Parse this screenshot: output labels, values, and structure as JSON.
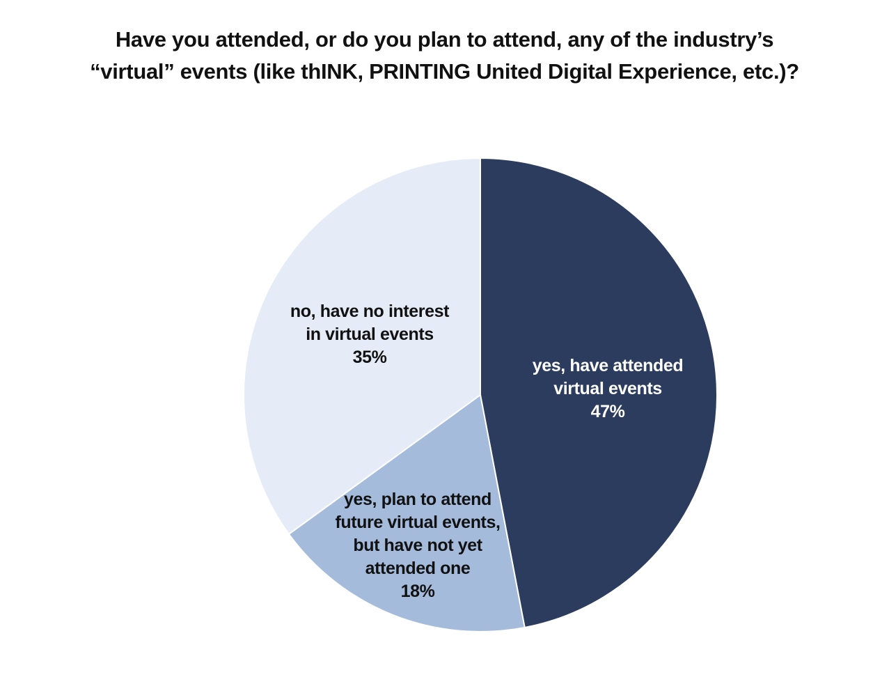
{
  "chart_data": {
    "type": "pie",
    "title": [
      "Have you attended, or do you plan to attend, any of the industry’s",
      "“virtual” events (like thINK, PRINTING United Digital Experience, etc.)?"
    ],
    "start_angle_deg": 0,
    "direction": "clockwise",
    "slices": [
      {
        "name": "yes, have attended virtual events",
        "label_lines": [
          "yes, have attended",
          "virtual events"
        ],
        "value": 47,
        "value_label": "47%",
        "color": "#2c3c5e",
        "text_color": "#ffffff"
      },
      {
        "name": "yes, plan to attend future virtual events, but have not yet attended one",
        "label_lines": [
          "yes, plan to attend",
          "future virtual events,",
          "but have not yet",
          "attended one"
        ],
        "value": 18,
        "value_label": "18%",
        "color": "#a4bbdc",
        "text_color": "#111111"
      },
      {
        "name": "no, have no interest in virtual events",
        "label_lines": [
          "no, have no interest",
          "in virtual events"
        ],
        "value": 35,
        "value_label": "35%",
        "color": "#e6ecf7",
        "text_color": "#111111"
      }
    ],
    "slice_border_color": "#ffffff"
  }
}
